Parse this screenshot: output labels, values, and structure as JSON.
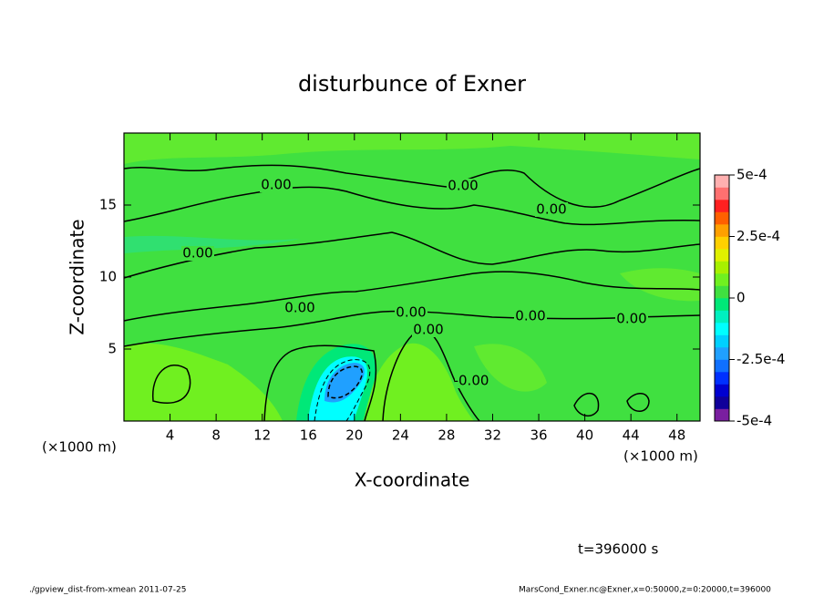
{
  "chart_data": {
    "type": "contour",
    "title": "disturbunce of Exner",
    "x_label": "X-coordinate",
    "y_label": "Z-coordinate",
    "x_unit_left": "(×1000 m)",
    "x_unit_right": "(×1000 m)",
    "xlim": [
      0,
      50
    ],
    "xticks": [
      4,
      8,
      12,
      16,
      20,
      24,
      28,
      32,
      36,
      40,
      44,
      48
    ],
    "ylim": [
      0,
      20
    ],
    "yticks": [
      5,
      10,
      15
    ],
    "contour_labels": [
      "0.00",
      "0.00",
      "0.00",
      "0.00",
      "0.00",
      "0.00",
      "0.00",
      "0.00",
      "0.00",
      "-0.00"
    ],
    "colorbar": {
      "lim": [
        -0.0005,
        0.0005
      ],
      "ticks": [
        {
          "value": 0.0005,
          "label": "5e-4"
        },
        {
          "value": 0.00025,
          "label": "2.5e-4"
        },
        0,
        {
          "value": -0.00025,
          "label": "-2.5e-4"
        },
        {
          "value": -0.0005,
          "label": "-5e-4"
        }
      ],
      "colors": [
        "#7a1fa0",
        "#10009a",
        "#0000d0",
        "#0030ff",
        "#1070ff",
        "#20a0ff",
        "#00d0ff",
        "#00ffff",
        "#00f0c0",
        "#00e878",
        "#40e040",
        "#70f020",
        "#a8f000",
        "#e0f000",
        "#ffd000",
        "#ffa000",
        "#ff6000",
        "#ff2020",
        "#ff7070",
        "#ffb0b0"
      ]
    },
    "time_label": "t=396000 s",
    "footer_left": "./gpview_dist-from-xmean  2011-07-25",
    "footer_right": "MarsCond_Exner.nc@Exner,x=0:50000,z=0:20000,t=396000"
  }
}
